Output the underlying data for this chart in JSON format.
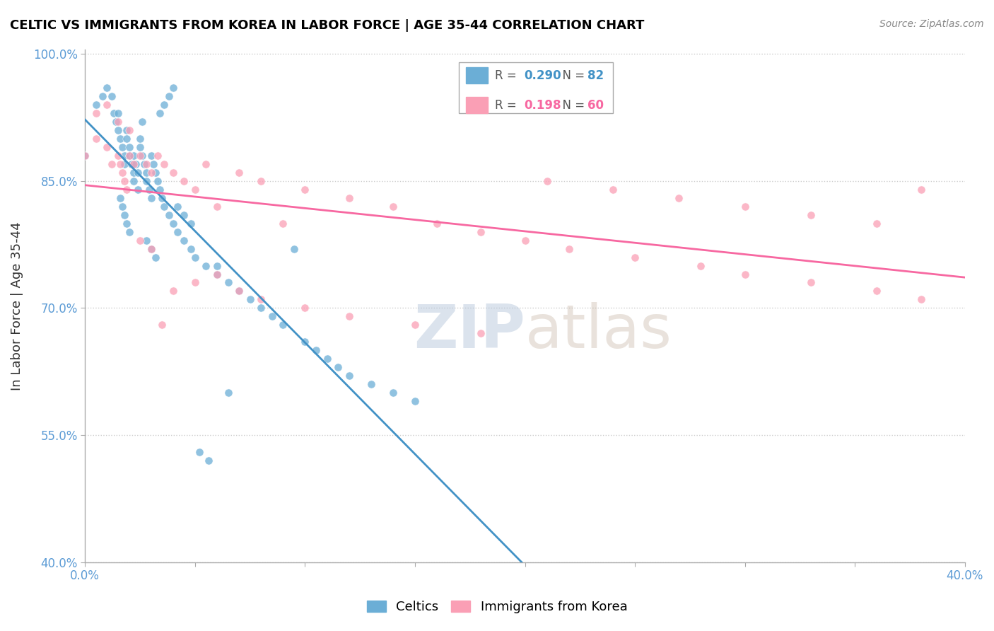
{
  "title": "CELTIC VS IMMIGRANTS FROM KOREA IN LABOR FORCE | AGE 35-44 CORRELATION CHART",
  "source": "Source: ZipAtlas.com",
  "ylabel": "In Labor Force | Age 35-44",
  "xlim": [
    0.0,
    0.4
  ],
  "ylim": [
    0.4,
    1.005
  ],
  "yticks": [
    0.4,
    0.55,
    0.7,
    0.85,
    1.0
  ],
  "ytick_labels": [
    "40.0%",
    "55.0%",
    "70.0%",
    "85.0%",
    "100.0%"
  ],
  "xtick_vals": [
    0.0,
    0.05,
    0.1,
    0.15,
    0.2,
    0.25,
    0.3,
    0.35,
    0.4
  ],
  "xtick_labels": [
    "0.0%",
    "",
    "",
    "",
    "",
    "",
    "",
    "",
    "40.0%"
  ],
  "blue_color": "#6baed6",
  "pink_color": "#fa9fb5",
  "blue_line_color": "#4292c6",
  "pink_line_color": "#f768a1",
  "legend_R_blue": "0.290",
  "legend_N_blue": "82",
  "legend_R_pink": "0.198",
  "legend_N_pink": "60",
  "legend_label_blue": "Celtics",
  "legend_label_pink": "Immigrants from Korea",
  "blue_scatter_x": [
    0.0,
    0.005,
    0.008,
    0.01,
    0.012,
    0.013,
    0.014,
    0.015,
    0.015,
    0.016,
    0.017,
    0.018,
    0.018,
    0.019,
    0.019,
    0.02,
    0.02,
    0.021,
    0.022,
    0.022,
    0.023,
    0.024,
    0.025,
    0.025,
    0.026,
    0.027,
    0.028,
    0.028,
    0.029,
    0.03,
    0.03,
    0.031,
    0.032,
    0.033,
    0.034,
    0.035,
    0.036,
    0.038,
    0.04,
    0.042,
    0.045,
    0.048,
    0.05,
    0.055,
    0.06,
    0.065,
    0.07,
    0.075,
    0.08,
    0.085,
    0.09,
    0.095,
    0.1,
    0.105,
    0.11,
    0.115,
    0.12,
    0.13,
    0.14,
    0.15,
    0.016,
    0.017,
    0.018,
    0.019,
    0.02,
    0.022,
    0.024,
    0.026,
    0.028,
    0.03,
    0.032,
    0.034,
    0.036,
    0.038,
    0.04,
    0.042,
    0.045,
    0.048,
    0.052,
    0.056,
    0.06,
    0.065
  ],
  "blue_scatter_y": [
    0.88,
    0.94,
    0.95,
    0.96,
    0.95,
    0.93,
    0.92,
    0.91,
    0.93,
    0.9,
    0.89,
    0.88,
    0.87,
    0.91,
    0.9,
    0.89,
    0.88,
    0.87,
    0.86,
    0.88,
    0.87,
    0.86,
    0.89,
    0.9,
    0.88,
    0.87,
    0.86,
    0.85,
    0.84,
    0.83,
    0.88,
    0.87,
    0.86,
    0.85,
    0.84,
    0.83,
    0.82,
    0.81,
    0.8,
    0.79,
    0.78,
    0.77,
    0.76,
    0.75,
    0.74,
    0.73,
    0.72,
    0.71,
    0.7,
    0.69,
    0.68,
    0.77,
    0.66,
    0.65,
    0.64,
    0.63,
    0.62,
    0.61,
    0.6,
    0.59,
    0.83,
    0.82,
    0.81,
    0.8,
    0.79,
    0.85,
    0.84,
    0.92,
    0.78,
    0.77,
    0.76,
    0.93,
    0.94,
    0.95,
    0.96,
    0.82,
    0.81,
    0.8,
    0.53,
    0.52,
    0.75,
    0.6
  ],
  "pink_scatter_x": [
    0.0,
    0.005,
    0.01,
    0.012,
    0.015,
    0.016,
    0.017,
    0.018,
    0.019,
    0.02,
    0.022,
    0.025,
    0.028,
    0.03,
    0.033,
    0.036,
    0.04,
    0.045,
    0.05,
    0.055,
    0.06,
    0.07,
    0.08,
    0.09,
    0.1,
    0.12,
    0.14,
    0.16,
    0.18,
    0.2,
    0.22,
    0.25,
    0.28,
    0.3,
    0.33,
    0.36,
    0.38,
    0.015,
    0.02,
    0.025,
    0.03,
    0.035,
    0.04,
    0.05,
    0.06,
    0.07,
    0.08,
    0.1,
    0.12,
    0.15,
    0.18,
    0.21,
    0.24,
    0.27,
    0.3,
    0.33,
    0.36,
    0.38,
    0.005,
    0.01
  ],
  "pink_scatter_y": [
    0.88,
    0.9,
    0.89,
    0.87,
    0.88,
    0.87,
    0.86,
    0.85,
    0.84,
    0.88,
    0.87,
    0.88,
    0.87,
    0.86,
    0.88,
    0.87,
    0.86,
    0.85,
    0.84,
    0.87,
    0.82,
    0.86,
    0.85,
    0.8,
    0.84,
    0.83,
    0.82,
    0.8,
    0.79,
    0.78,
    0.77,
    0.76,
    0.75,
    0.74,
    0.73,
    0.72,
    0.71,
    0.92,
    0.91,
    0.78,
    0.77,
    0.68,
    0.72,
    0.73,
    0.74,
    0.72,
    0.71,
    0.7,
    0.69,
    0.68,
    0.67,
    0.85,
    0.84,
    0.83,
    0.82,
    0.81,
    0.8,
    0.84,
    0.93,
    0.94
  ],
  "background_color": "#ffffff",
  "grid_color": "#cccccc",
  "tick_color": "#5b9bd5",
  "title_color": "#000000",
  "axis_color": "#aaaaaa"
}
